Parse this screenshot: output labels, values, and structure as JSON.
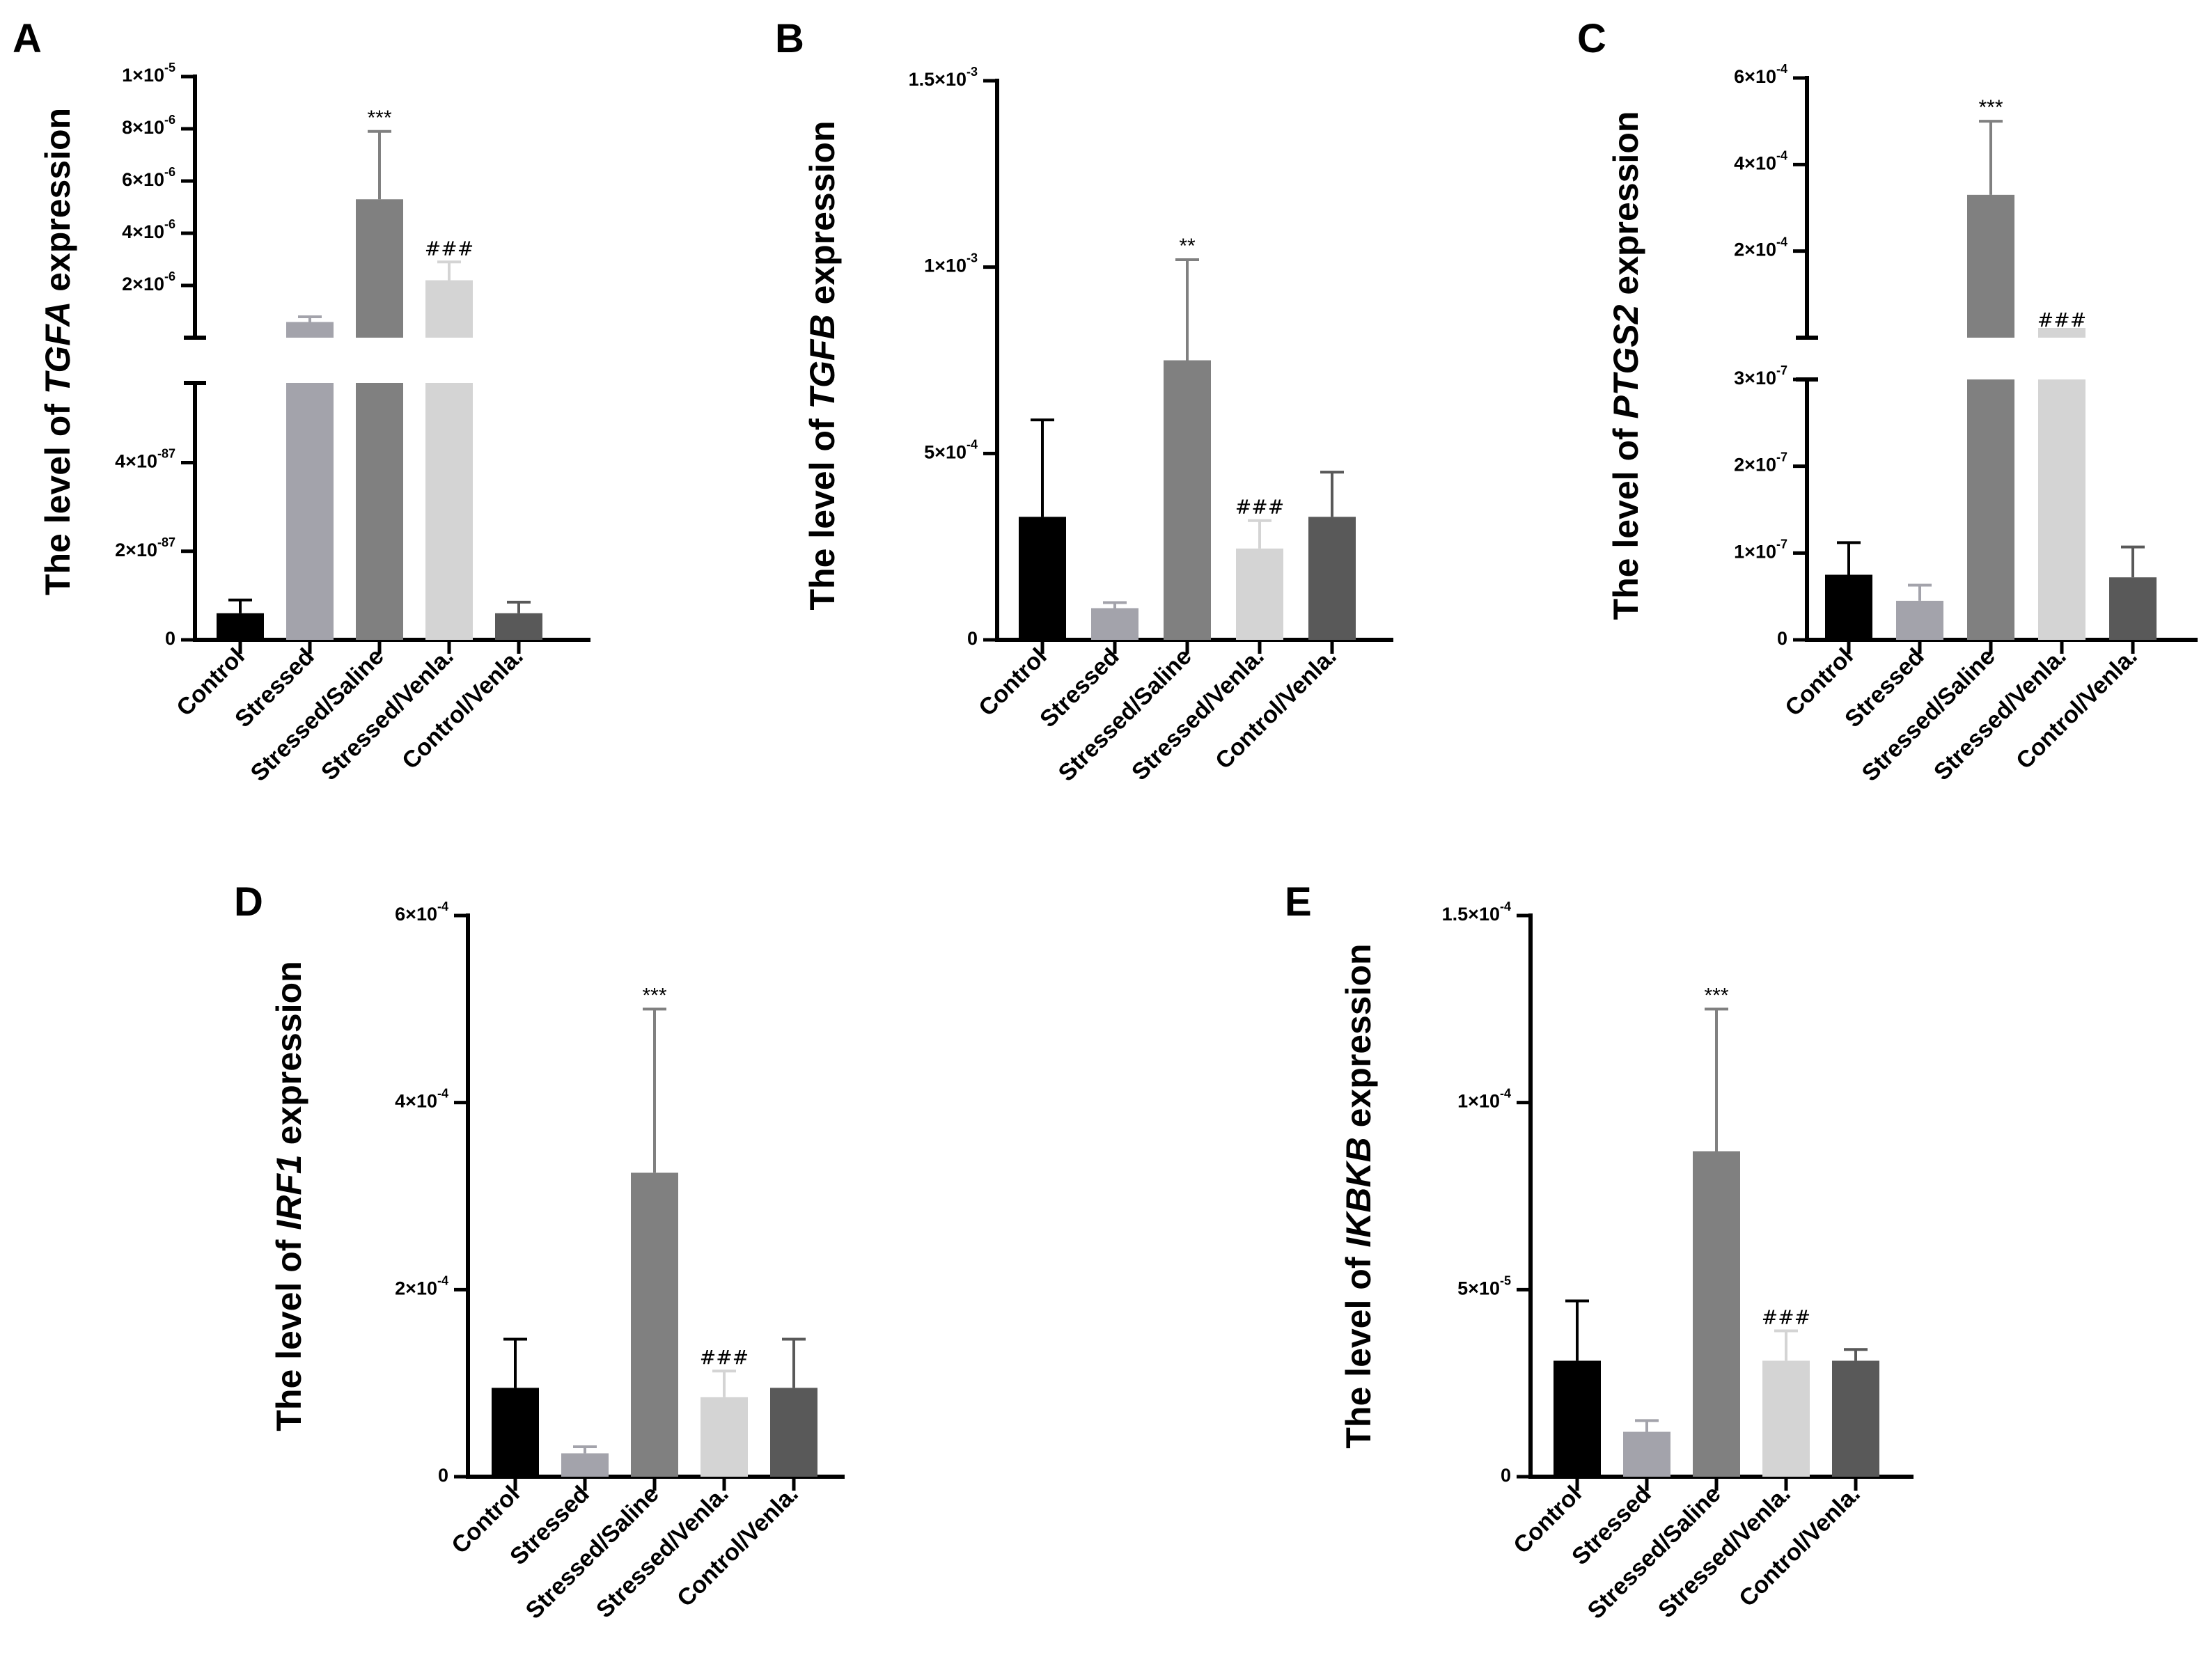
{
  "colors": [
    "#000000",
    "#a3a3ab",
    "#808080",
    "#d4d4d4",
    "#595959"
  ],
  "chart_data": [
    {
      "panel": "A",
      "type": "bar",
      "title": "",
      "ylabel_parts": [
        "The level of ",
        "TGFA",
        " expression"
      ],
      "categories": [
        "Control",
        "Stressed",
        "Stressed/Saline",
        "Stressed/Venla.",
        "Control/Venla."
      ],
      "broken_axis": true,
      "lower": {
        "ylim": [
          0,
          5.8e-87
        ],
        "ticks": [
          {
            "v": 0,
            "m": "0",
            "e": ""
          },
          {
            "v": 2e-87,
            "m": "2×10",
            "e": "-87"
          },
          {
            "v": 4e-87,
            "m": "4×10",
            "e": "-87"
          }
        ]
      },
      "upper": {
        "ylim": [
          0,
          1e-05
        ],
        "ticks": [
          {
            "v": 2e-06,
            "m": "2×10",
            "e": "-6"
          },
          {
            "v": 4e-06,
            "m": "4×10",
            "e": "-6"
          },
          {
            "v": 6e-06,
            "m": "6×10",
            "e": "-6"
          },
          {
            "v": 8e-06,
            "m": "8×10",
            "e": "-6"
          },
          {
            "v": 1e-05,
            "m": "1×10",
            "e": "-5"
          }
        ]
      },
      "values": [
        6e-88,
        6e-07,
        5.3e-06,
        2.2e-06,
        6e-88
      ],
      "errors": [
        3e-88,
        2e-07,
        2.6e-06,
        7e-07,
        2.5e-88
      ],
      "annotations": [
        "",
        "",
        "***",
        "###",
        ""
      ]
    },
    {
      "panel": "B",
      "type": "bar",
      "title": "",
      "ylabel_parts": [
        "The level of ",
        "TGFB",
        " expression"
      ],
      "categories": [
        "Control",
        "Stressed",
        "Stressed/Saline",
        "Stressed/Venla.",
        "Control/Venla."
      ],
      "broken_axis": false,
      "ylim": [
        0,
        0.0015
      ],
      "ticks": [
        {
          "v": 0,
          "m": "0",
          "e": ""
        },
        {
          "v": 0.0005,
          "m": "5×10",
          "e": "-4"
        },
        {
          "v": 0.001,
          "m": "1×10",
          "e": "-3"
        },
        {
          "v": 0.0015,
          "m": "1.5×10",
          "e": "-3"
        }
      ],
      "values": [
        0.00033,
        8.5e-05,
        0.00075,
        0.000245,
        0.00033
      ],
      "errors": [
        0.00026,
        1.5e-05,
        0.00027,
        7.5e-05,
        0.00012
      ],
      "annotations": [
        "",
        "",
        "**",
        "###",
        ""
      ]
    },
    {
      "panel": "C",
      "type": "bar",
      "title": "",
      "ylabel_parts": [
        "The level of ",
        "PTGS2",
        " expression"
      ],
      "categories": [
        "Control",
        "Stressed",
        "Stressed/Saline",
        "Stressed/Venla.",
        "Control/Venla."
      ],
      "broken_axis": true,
      "lower": {
        "ylim": [
          0,
          3e-07
        ],
        "ticks": [
          {
            "v": 0,
            "m": "0",
            "e": ""
          },
          {
            "v": 1e-07,
            "m": "1×10",
            "e": "-7"
          },
          {
            "v": 2e-07,
            "m": "2×10",
            "e": "-7"
          },
          {
            "v": 3e-07,
            "m": "3×10",
            "e": "-7"
          }
        ]
      },
      "upper": {
        "ylim": [
          0,
          0.0006
        ],
        "ticks": [
          {
            "v": 0.0002,
            "m": "2×10",
            "e": "-4"
          },
          {
            "v": 0.0004,
            "m": "4×10",
            "e": "-4"
          },
          {
            "v": 0.0006,
            "m": "6×10",
            "e": "-4"
          }
        ]
      },
      "values": [
        7.5e-08,
        4.5e-08,
        0.00033,
        3e-06,
        7.2e-08
      ],
      "errors": [
        3.7e-08,
        1.8e-08,
        0.00017,
        7e-06,
        3.5e-08
      ],
      "annotations": [
        "",
        "",
        "***",
        "###",
        ""
      ]
    },
    {
      "panel": "D",
      "type": "bar",
      "title": "",
      "ylabel_parts": [
        "The level of ",
        "IRF1",
        " expression"
      ],
      "categories": [
        "Control",
        "Stressed",
        "Stressed/Saline",
        "Stressed/Venla.",
        "Control/Venla."
      ],
      "broken_axis": false,
      "ylim": [
        0,
        0.0006
      ],
      "ticks": [
        {
          "v": 0,
          "m": "0",
          "e": ""
        },
        {
          "v": 0.0002,
          "m": "2×10",
          "e": "-4"
        },
        {
          "v": 0.0004,
          "m": "4×10",
          "e": "-4"
        },
        {
          "v": 0.0006,
          "m": "6×10",
          "e": "-4"
        }
      ],
      "values": [
        9.5e-05,
        2.5e-05,
        0.000325,
        8.5e-05,
        9.5e-05
      ],
      "errors": [
        5.2e-05,
        7e-06,
        0.000175,
        2.8e-05,
        5.2e-05
      ],
      "annotations": [
        "",
        "",
        "***",
        "###",
        ""
      ]
    },
    {
      "panel": "E",
      "type": "bar",
      "title": "",
      "ylabel_parts": [
        "The level of ",
        "IKBKB",
        " expression"
      ],
      "categories": [
        "Control",
        "Stressed",
        "Stressed/Saline",
        "Stressed/Venla.",
        "Control/Venla."
      ],
      "broken_axis": false,
      "ylim": [
        0,
        0.00015
      ],
      "ticks": [
        {
          "v": 0,
          "m": "0",
          "e": ""
        },
        {
          "v": 5e-05,
          "m": "5×10",
          "e": "-5"
        },
        {
          "v": 0.0001,
          "m": "1×10",
          "e": "-4"
        },
        {
          "v": 0.00015,
          "m": "1.5×10",
          "e": "-4"
        }
      ],
      "values": [
        3.1e-05,
        1.2e-05,
        8.7e-05,
        3.1e-05,
        3.1e-05
      ],
      "errors": [
        1.6e-05,
        3e-06,
        3.8e-05,
        8e-06,
        3e-06
      ],
      "annotations": [
        "",
        "",
        "***",
        "###",
        ""
      ]
    }
  ]
}
